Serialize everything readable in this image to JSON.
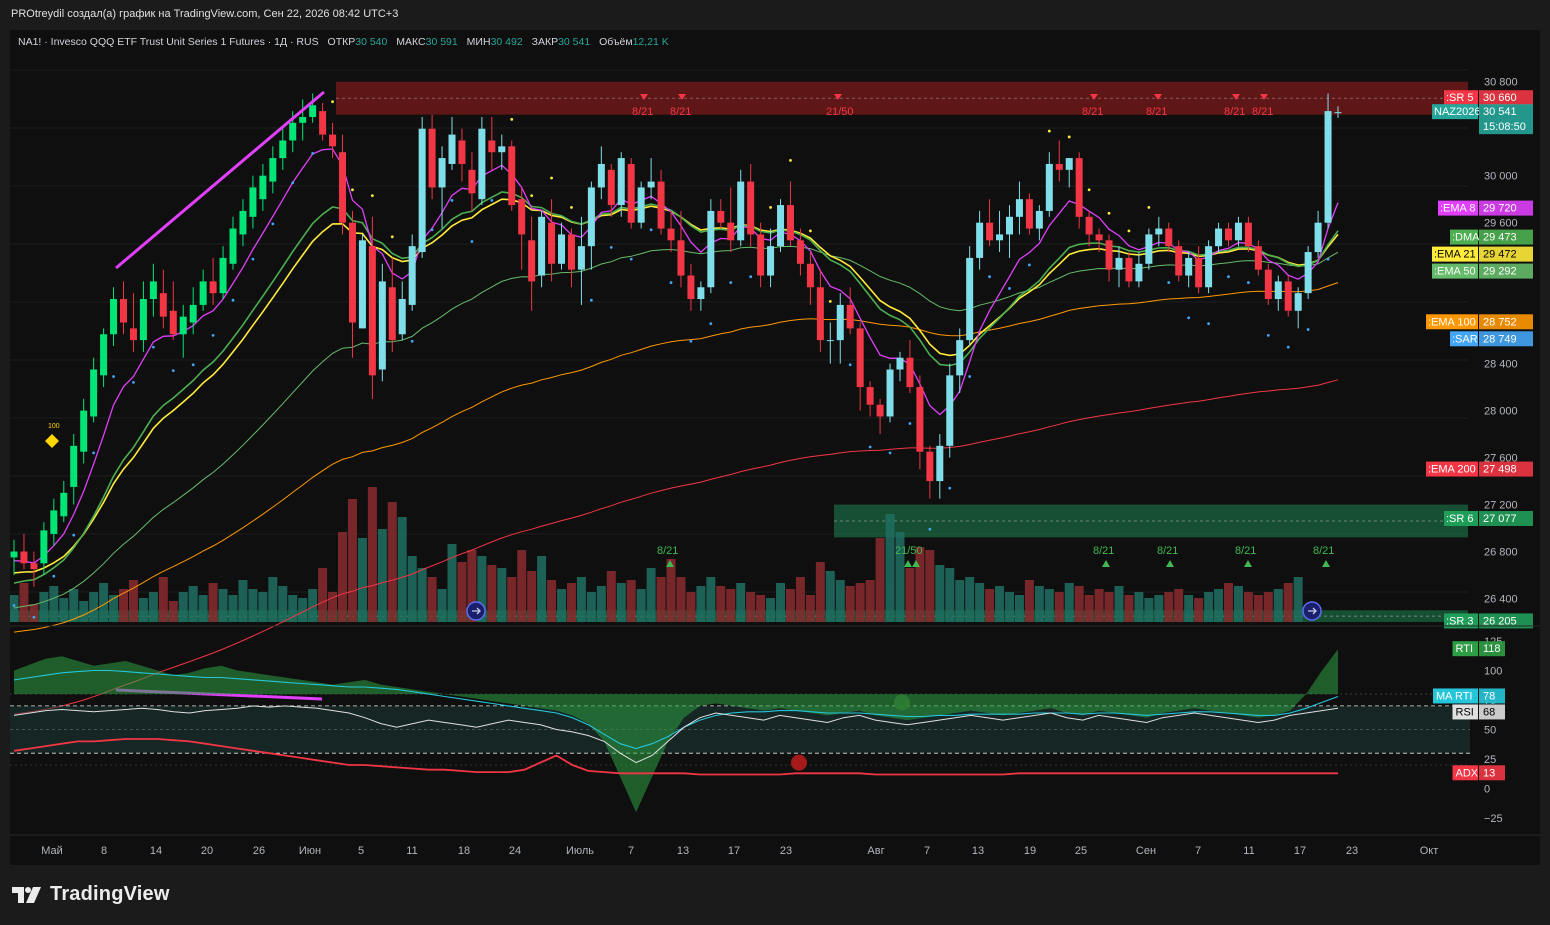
{
  "header": {
    "published_text": "PROtreydil создал(а) график на TradingView.com, Сен 22, 2026 08:42 UTC+3"
  },
  "legend": {
    "symbol": "NA1! · Invesco QQQ ETF Trust Unit Series 1 Futures · 1Д · RUS",
    "open_label": "ОТКР",
    "open_value": "30 540",
    "high_label": "МАКС",
    "high_value": "30 591",
    "low_label": "МИН",
    "low_value": "30 492",
    "close_label": "ЗАКР",
    "close_value": "30 541",
    "volume_label": "Объём",
    "volume_value": "12,21 K"
  },
  "colors": {
    "background": "#0f0f0f",
    "bull_candle": "#80deea",
    "bull_candle_early": "#00e676",
    "bear_candle": "#f23645",
    "ema8": "#e040fb",
    "ema21": "#ffeb3b",
    "ema50": "#66bb6a",
    "dma": "#4caf50",
    "ema100": "#ff9800",
    "ema200": "#f23645",
    "sar": "#42a5f5",
    "resistance_zone": "#8b1a1a",
    "support_zone": "#1b7a4a",
    "rti": "#2e9e44",
    "ma_rti": "#26c6da",
    "rsi": "#e0e0e0",
    "adx": "#f23645"
  },
  "price_axis": {
    "labels": [
      "30 800",
      "30 000",
      "29 600",
      "28 400",
      "28 000",
      "27 600",
      "27 200",
      "26 800",
      "26 400"
    ]
  },
  "price_tags": [
    {
      "name": "SR 5",
      "label": ":SR 5",
      "value": "30 660",
      "price": 30660,
      "color": "#f23645"
    },
    {
      "name": "NAZ2026",
      "label": "NAZ2026",
      "value": "30 541",
      "sub": "15:08:50",
      "price": 30541,
      "color": "#26a69a"
    },
    {
      "name": "EMA 8",
      "label": ":EMA 8",
      "value": "29 720",
      "price": 29720,
      "color": "#e040fb"
    },
    {
      "name": "DMA",
      "label": ":DMA",
      "value": "29 473",
      "price": 29473,
      "color": "#4caf50"
    },
    {
      "name": "EMA 21",
      "label": ":EMA 21",
      "value": "29 472",
      "price": 29472,
      "color": "#ffeb3b"
    },
    {
      "name": "EMA 50",
      "label": ":EMA 50",
      "value": "29 292",
      "price": 29292,
      "color": "#66bb6a"
    },
    {
      "name": "EMA 100",
      "label": ":EMA 100",
      "value": "28 752",
      "price": 28752,
      "color": "#ff9800"
    },
    {
      "name": "SAR",
      "label": ":SAR",
      "value": "28 749",
      "price": 28749,
      "color": "#42a5f5"
    },
    {
      "name": "EMA 200",
      "label": ":EMA 200",
      "value": "27 498",
      "price": 27498,
      "color": "#f23645"
    },
    {
      "name": "SR 6",
      "label": ":SR 6",
      "value": "27 077",
      "price": 27077,
      "color": "#1f9e5a"
    },
    {
      "name": "SR 3",
      "label": ":SR 3",
      "value": "26 205",
      "price": 26205,
      "color": "#1f9e5a"
    }
  ],
  "date_axis": {
    "labels": [
      "Май",
      "8",
      "14",
      "20",
      "26",
      "Июн",
      "5",
      "11",
      "18",
      "24",
      "Июль",
      "7",
      "13",
      "17",
      "23",
      "Авг",
      "7",
      "13",
      "19",
      "25",
      "Сен",
      "7",
      "11",
      "17",
      "23",
      "Окт"
    ]
  },
  "annotations": {
    "marker_100": "100",
    "cycle_labels_top": [
      "8/21",
      "8/21",
      "21/50",
      "8/21",
      "8/21",
      "8/21",
      "8/21"
    ],
    "cycle_labels_bottom": [
      "8/21",
      "21/50",
      "8/21",
      "8/21",
      "8/21",
      "8/21",
      "8/21"
    ]
  },
  "indicator_panel": {
    "axis_labels": [
      "125",
      "100",
      "75",
      "50",
      "25",
      "0",
      "−25"
    ],
    "tags": [
      {
        "label": "RTI",
        "value": "118",
        "level": 118,
        "color": "#2e9e44"
      },
      {
        "label": "MA RTI",
        "value": "78",
        "level": 78,
        "color": "#26c6da"
      },
      {
        "label": "RSI",
        "value": "68",
        "level": 68,
        "color": "#e0e0e0"
      },
      {
        "label": "ADX",
        "value": "13",
        "level": 13,
        "color": "#f23645"
      }
    ]
  },
  "chart_data": {
    "type": "candlestick",
    "title": "NA1! · Invesco QQQ ETF Trust Unit Series 1 Futures · 1Д · RUS",
    "y_range": [
      26200,
      30900
    ],
    "x_range": [
      "Май",
      "Окт"
    ],
    "zones": [
      {
        "name": "SR 5",
        "low": 30520,
        "high": 30800
      },
      {
        "name": "SR 6",
        "low": 26920,
        "high": 27200
      },
      {
        "name": "SR 3",
        "low": 26200,
        "high": 26300
      }
    ],
    "ohlc": [
      [
        26750,
        26900,
        26600,
        26800
      ],
      [
        26800,
        26950,
        26650,
        26700
      ],
      [
        26700,
        26800,
        26500,
        26650
      ],
      [
        26700,
        27050,
        26600,
        26980
      ],
      [
        26950,
        27250,
        26850,
        27150
      ],
      [
        27100,
        27400,
        27050,
        27300
      ],
      [
        27350,
        27800,
        27200,
        27700
      ],
      [
        27650,
        28100,
        27550,
        28000
      ],
      [
        27950,
        28450,
        27900,
        28350
      ],
      [
        28300,
        28700,
        28200,
        28650
      ],
      [
        28650,
        29050,
        28550,
        28950
      ],
      [
        28950,
        29100,
        28650,
        28750
      ],
      [
        28700,
        29000,
        28500,
        28600
      ],
      [
        28600,
        29100,
        28500,
        28950
      ],
      [
        28950,
        29250,
        28800,
        29100
      ],
      [
        29000,
        29200,
        28700,
        28800
      ],
      [
        28850,
        29100,
        28600,
        28650
      ],
      [
        28650,
        28900,
        28450,
        28800
      ],
      [
        28750,
        29050,
        28650,
        28900
      ],
      [
        28900,
        29200,
        28850,
        29100
      ],
      [
        29100,
        29300,
        28900,
        29000
      ],
      [
        29000,
        29400,
        28950,
        29300
      ],
      [
        29250,
        29650,
        29200,
        29550
      ],
      [
        29500,
        29800,
        29400,
        29700
      ],
      [
        29650,
        30000,
        29550,
        29900
      ],
      [
        29800,
        30100,
        29700,
        30000
      ],
      [
        29950,
        30250,
        29850,
        30150
      ],
      [
        30150,
        30400,
        30050,
        30300
      ],
      [
        30300,
        30550,
        30200,
        30450
      ],
      [
        30450,
        30650,
        30300,
        30500
      ],
      [
        30500,
        30700,
        30450,
        30600
      ],
      [
        30550,
        30620,
        30300,
        30350
      ],
      [
        30350,
        30450,
        30150,
        30250
      ],
      [
        30200,
        30350,
        29500,
        29600
      ],
      [
        29600,
        29700,
        28450,
        28750
      ],
      [
        28700,
        29500,
        28700,
        29450
      ],
      [
        29400,
        29650,
        28100,
        28300
      ],
      [
        28350,
        29250,
        28250,
        29100
      ],
      [
        29050,
        29300,
        28500,
        28600
      ],
      [
        28650,
        29100,
        28600,
        28950
      ],
      [
        28900,
        29500,
        28850,
        29400
      ],
      [
        29350,
        30500,
        29300,
        30400
      ],
      [
        30400,
        30520,
        29800,
        29900
      ],
      [
        29900,
        30250,
        29550,
        30150
      ],
      [
        30100,
        30500,
        30050,
        30350
      ],
      [
        30300,
        30400,
        29950,
        30100
      ],
      [
        30050,
        30200,
        29700,
        29850
      ],
      [
        29800,
        30500,
        29750,
        30400
      ],
      [
        30300,
        30500,
        30050,
        30200
      ],
      [
        30200,
        30350,
        30050,
        30250
      ],
      [
        30250,
        30300,
        29700,
        29750
      ],
      [
        29800,
        29900,
        29200,
        29500
      ],
      [
        29450,
        29650,
        28850,
        29100
      ],
      [
        29150,
        29700,
        29050,
        29650
      ],
      [
        29600,
        29800,
        29100,
        29250
      ],
      [
        29250,
        29600,
        29200,
        29500
      ],
      [
        29500,
        29550,
        29050,
        29200
      ],
      [
        29200,
        29650,
        28900,
        29400
      ],
      [
        29400,
        29950,
        29200,
        29900
      ],
      [
        29900,
        30250,
        29800,
        30100
      ],
      [
        30050,
        30100,
        29650,
        29750
      ],
      [
        29750,
        30200,
        29650,
        30150
      ],
      [
        30100,
        30150,
        29550,
        29600
      ],
      [
        29600,
        29950,
        29550,
        29900
      ],
      [
        29900,
        30150,
        29800,
        29950
      ],
      [
        29950,
        30050,
        29500,
        29550
      ],
      [
        29550,
        29700,
        29350,
        29450
      ],
      [
        29450,
        29700,
        29050,
        29150
      ],
      [
        29150,
        29250,
        28850,
        28950
      ],
      [
        28950,
        29100,
        28850,
        29050
      ],
      [
        29050,
        29800,
        29000,
        29700
      ],
      [
        29700,
        29800,
        29550,
        29600
      ],
      [
        29600,
        29900,
        29350,
        29450
      ],
      [
        29450,
        30050,
        29400,
        29950
      ],
      [
        29950,
        30100,
        29400,
        29500
      ],
      [
        29500,
        29600,
        29050,
        29150
      ],
      [
        29150,
        29550,
        29050,
        29400
      ],
      [
        29400,
        29800,
        29350,
        29750
      ],
      [
        29750,
        29950,
        29400,
        29450
      ],
      [
        29450,
        29550,
        29150,
        29250
      ],
      [
        29250,
        29350,
        28900,
        29050
      ],
      [
        29050,
        29200,
        28500,
        28600
      ],
      [
        28600,
        28750,
        28400,
        28600
      ],
      [
        28600,
        29000,
        28400,
        28900
      ],
      [
        28900,
        29050,
        28650,
        28700
      ],
      [
        28700,
        28750,
        28000,
        28200
      ],
      [
        28200,
        28250,
        27950,
        28050
      ],
      [
        28050,
        28100,
        27800,
        27950
      ],
      [
        27950,
        28400,
        27900,
        28350
      ],
      [
        28350,
        28500,
        28250,
        28450
      ],
      [
        28450,
        28600,
        28150,
        28200
      ],
      [
        28200,
        28300,
        27500,
        27650
      ],
      [
        27650,
        27700,
        27250,
        27400
      ],
      [
        27400,
        27800,
        27250,
        27700
      ],
      [
        27700,
        28400,
        27600,
        28300
      ],
      [
        28300,
        28700,
        28150,
        28600
      ],
      [
        28600,
        29400,
        28550,
        29300
      ],
      [
        29300,
        29700,
        29200,
        29600
      ],
      [
        29600,
        29800,
        29400,
        29450
      ],
      [
        29450,
        29700,
        29350,
        29500
      ],
      [
        29500,
        29750,
        29300,
        29650
      ],
      [
        29650,
        29950,
        29500,
        29800
      ],
      [
        29800,
        29850,
        29500,
        29550
      ],
      [
        29550,
        29750,
        29450,
        29700
      ],
      [
        29700,
        30200,
        29650,
        30100
      ],
      [
        30100,
        30300,
        29950,
        30050
      ],
      [
        30050,
        30150,
        29900,
        30150
      ],
      [
        30150,
        30200,
        29550,
        29650
      ],
      [
        29650,
        29700,
        29400,
        29500
      ],
      [
        29500,
        29550,
        29350,
        29450
      ],
      [
        29450,
        29500,
        29100,
        29200
      ],
      [
        29200,
        29400,
        29050,
        29300
      ],
      [
        29300,
        29350,
        29050,
        29100
      ],
      [
        29100,
        29350,
        29050,
        29250
      ],
      [
        29250,
        29550,
        29200,
        29500
      ],
      [
        29500,
        29650,
        29400,
        29550
      ],
      [
        29550,
        29600,
        29350,
        29400
      ],
      [
        29400,
        29450,
        29100,
        29150
      ],
      [
        29150,
        29350,
        29050,
        29300
      ],
      [
        29300,
        29400,
        29000,
        29050
      ],
      [
        29050,
        29450,
        29000,
        29400
      ],
      [
        29400,
        29600,
        29350,
        29550
      ],
      [
        29550,
        29600,
        29400,
        29450
      ],
      [
        29450,
        29650,
        29400,
        29600
      ],
      [
        29600,
        29650,
        29350,
        29400
      ],
      [
        29400,
        29450,
        29150,
        29200
      ],
      [
        29200,
        29250,
        28900,
        28950
      ],
      [
        28950,
        29150,
        28850,
        29100
      ],
      [
        29100,
        29150,
        28800,
        28850
      ],
      [
        28850,
        29050,
        28700,
        29000
      ],
      [
        29000,
        29400,
        28950,
        29350
      ],
      [
        29350,
        29700,
        29300,
        29600
      ],
      [
        29600,
        30700,
        29550,
        30550
      ],
      [
        30540,
        30591,
        30492,
        30541
      ]
    ],
    "volume": [
      18,
      26,
      12,
      20,
      24,
      16,
      22,
      14,
      20,
      26,
      18,
      22,
      28,
      16,
      20,
      30,
      14,
      20,
      24,
      18,
      26,
      22,
      18,
      28,
      22,
      20,
      30,
      24,
      18,
      16,
      22,
      36,
      20,
      60,
      82,
      56,
      90,
      62,
      80,
      70,
      44,
      36,
      30,
      22,
      52,
      40,
      48,
      44,
      38,
      36,
      30,
      48,
      34,
      44,
      28,
      22,
      26,
      30,
      20,
      24,
      34,
      26,
      28,
      22,
      36,
      30,
      42,
      30,
      20,
      24,
      30,
      24,
      22,
      26,
      20,
      18,
      16,
      26,
      22,
      30,
      18,
      40,
      34,
      28,
      24,
      26,
      28,
      56,
      72,
      60,
      36,
      50,
      48,
      38,
      36,
      28,
      30,
      26,
      22,
      24,
      20,
      18,
      28,
      24,
      22,
      20,
      26,
      24,
      18,
      22,
      20,
      24,
      18,
      20,
      16,
      18,
      20,
      22,
      18,
      16,
      20,
      22,
      26,
      24,
      20,
      18,
      20,
      22,
      26,
      30
    ],
    "ema8_last": 29720,
    "ema21_last": 29472,
    "ema50_last": 29292,
    "dma_last": 29473,
    "ema100_last": 28752,
    "ema200_last": 27498,
    "sar_last": 28749,
    "rsi": [
      62,
      64,
      66,
      67,
      66,
      65,
      66,
      67,
      68,
      67,
      65,
      64,
      66,
      67,
      68,
      70,
      69,
      70,
      69,
      68,
      66,
      64,
      60,
      55,
      52,
      55,
      58,
      56,
      54,
      52,
      55,
      58,
      56,
      54,
      50,
      48,
      45,
      40,
      30,
      22,
      28,
      40,
      52,
      60,
      64,
      62,
      60,
      58,
      62,
      60,
      58,
      56,
      60,
      62,
      58,
      56,
      54,
      56,
      58,
      60,
      62,
      60,
      58,
      60,
      62,
      64,
      60,
      58,
      62,
      60,
      58,
      56,
      60,
      62,
      64,
      62,
      60,
      58,
      56,
      58,
      62,
      64,
      66,
      68
    ],
    "rti": [
      100,
      105,
      110,
      112,
      108,
      104,
      106,
      108,
      104,
      100,
      96,
      98,
      102,
      104,
      100,
      98,
      96,
      94,
      92,
      90,
      88,
      90,
      92,
      88,
      86,
      84,
      82,
      80,
      78,
      76,
      74,
      72,
      70,
      68,
      66,
      62,
      55,
      40,
      10,
      -20,
      10,
      40,
      60,
      70,
      72,
      70,
      68,
      66,
      68,
      66,
      64,
      62,
      64,
      66,
      62,
      60,
      58,
      60,
      62,
      64,
      66,
      64,
      62,
      64,
      66,
      68,
      64,
      62,
      66,
      64,
      62,
      60,
      64,
      66,
      68,
      66,
      64,
      62,
      60,
      62,
      66,
      80,
      100,
      118
    ],
    "ma_rti": [
      92,
      94,
      96,
      98,
      99,
      100,
      100,
      99,
      98,
      97,
      96,
      95,
      94,
      94,
      93,
      92,
      91,
      90,
      89,
      88,
      87,
      86,
      86,
      85,
      84,
      82,
      80,
      78,
      76,
      74,
      72,
      70,
      68,
      66,
      64,
      60,
      54,
      46,
      38,
      34,
      38,
      44,
      52,
      58,
      62,
      64,
      65,
      65,
      66,
      66,
      65,
      64,
      64,
      64,
      63,
      62,
      61,
      61,
      62,
      62,
      63,
      63,
      63,
      63,
      64,
      64,
      64,
      63,
      64,
      64,
      63,
      62,
      63,
      64,
      65,
      65,
      64,
      63,
      62,
      62,
      64,
      68,
      73,
      78
    ],
    "adx": [
      32,
      34,
      36,
      38,
      40,
      40,
      41,
      42,
      42,
      42,
      41,
      40,
      38,
      36,
      34,
      32,
      30,
      28,
      26,
      24,
      22,
      20,
      20,
      19,
      18,
      17,
      16,
      16,
      15,
      14,
      14,
      14,
      16,
      22,
      28,
      20,
      15,
      14,
      13,
      13,
      13,
      13,
      13,
      12,
      12,
      12,
      12,
      12,
      12,
      13,
      13,
      13,
      13,
      13,
      12,
      12,
      12,
      12,
      12,
      12,
      12,
      12,
      12,
      13,
      13,
      13,
      13,
      13,
      13,
      13,
      13,
      13,
      13,
      13,
      13,
      13,
      13,
      13,
      13,
      13,
      13,
      13,
      13,
      13
    ]
  }
}
